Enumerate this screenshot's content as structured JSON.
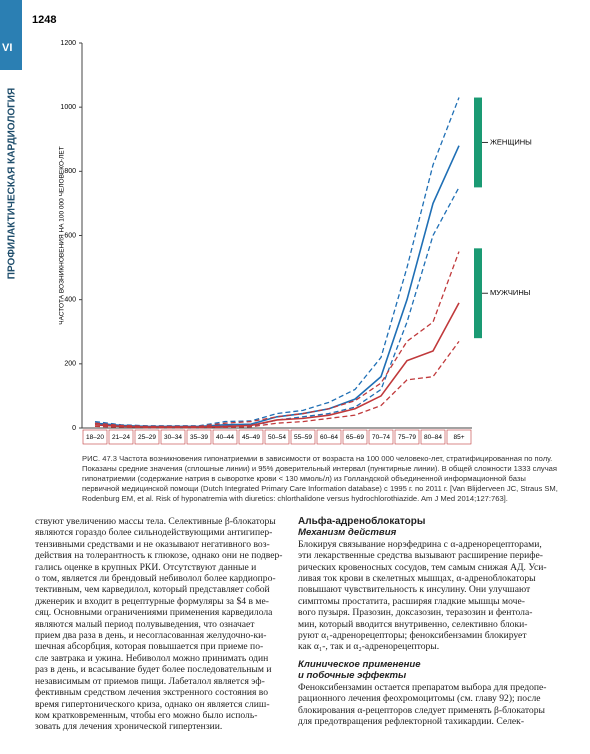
{
  "page": {
    "number": "1248",
    "section": "VI",
    "running_title": "ПРОФИЛАКТИЧЕСКАЯ КАРДИОЛОГИЯ",
    "caption": "РИС. 47.3 Частота возникновения гипонатриемии в зависимости от возраста на 100 000 человеко-лет, стратифицированная по полу. Показаны средние значения (сплошные линии) и 95% доверительный интервал (пунктирные линии). В общей сложности 1333 случая гипонатриемии (содержание натрия в сыворотке крови < 130 ммоль/л) из Голландской объединенной информационной базы первичной медицинской помощи (Dutch Integrated Primary Care Information database) с 1995 г. по 2011 г. [Van Blijderveen JC, Straus SM, Rodenburg EM, et al. Risk of hyponatremia with diuretics: chlorthalidone versus hydrochlorothiazide. Am J Med 2014;127:763].",
    "left_column": [
      "ствуют увеличению массы тела. Селективные β-блокаторы",
      "являются гораздо более сильнодействующими антигипер-",
      "тензивными средствами и не оказывают негативного воз-",
      "действия на толерантность к глюкозе, однако они не подвер-",
      "гались оценке в крупных РКИ. Отсутствуют данные и",
      "о том, является ли брендовый небиволол более кардиопро-",
      "тективным, чем карведилол, который представляет собой",
      "дженерик и входит в рецептурные формуляры за $4 в ме-",
      "сяц. Основными ограничениями применения карведилола",
      "являются малый период полувыведения, что означает",
      "прием два раза в день, и несогласованная желудочно-ки-",
      "шечная абсорбция, которая повышается при приеме по-",
      "сле завтрака и ужина. Небиволол можно принимать один",
      "раз в день, и всасывание будет более последовательным и",
      "независимым от приемов пищи. Лабеталол является эф-",
      "фективным средством лечения экстренного состояния во",
      "время гипертонического криза, однако он является слиш-",
      "ком кратковременным, чтобы его можно было исполь-",
      "зовать для лечения хронической гипертензии."
    ],
    "right_heading": "Альфа-адреноблокаторы",
    "right_subheading": "Механизм действия",
    "right_column": [
      "Блокируя связывание норэфедрина с α-адренорецепторами,",
      "эти лекарственные средства вызывают расширение перифе-",
      "рических кровеносных сосудов, тем самым снижая АД. Уси-",
      "ливая ток крови в скелетных мышцах, α-адреноблокаторы",
      "повышают чувствительность к инсулину. Они улучшают",
      "симптомы простатита, расширяя гладкие мышцы моче-",
      "вого пузыря. Празозин, доксазозин, теразозин и фентола-",
      "мин, который вводится внутривенно, селективно блоки-",
      "руют α₁-адренорецепторы; феноксибензамин блокирует",
      "как α₁-, так и α₂-адренорецепторы."
    ],
    "right_subheading_2": [
      "Клиническое применение",
      "и побочные эффекты"
    ],
    "right_column_2": [
      "Феноксибензамин остается препаратом выбора для предопе-",
      "рационного лечения феохромоцитомы (см. главу 92); после",
      "блокирования α-рецепторов следует применять β-блокаторы",
      "для предотвращения рефлекторной тахикардии. Селек-"
    ]
  },
  "chart_data": {
    "type": "line",
    "y_label": "ЧАСТОТА ВОЗНИКНОВЕНИЯ НА 100 000 ЧЕЛОВЕКО-ЛЕТ",
    "categories": [
      "18–20",
      "21–24",
      "25–29",
      "30–34",
      "35–39",
      "40–44",
      "45–49",
      "50–54",
      "55–59",
      "60–64",
      "65–69",
      "70–74",
      "75–79",
      "80–84",
      "85+"
    ],
    "ylim": [
      0,
      1200
    ],
    "yticks": [
      0,
      200,
      400,
      600,
      800,
      1000,
      1200
    ],
    "series": [
      {
        "color": "#1f6fb5",
        "dashed": false,
        "values": [
          15,
          8,
          5,
          5,
          5,
          10,
          12,
          35,
          45,
          60,
          90,
          160,
          400,
          700,
          880
        ]
      },
      {
        "color": "#1f6fb5",
        "dashed": true,
        "values": [
          20,
          10,
          7,
          7,
          7,
          20,
          22,
          45,
          55,
          80,
          120,
          220,
          500,
          820,
          1030
        ]
      },
      {
        "color": "#1f6fb5",
        "dashed": true,
        "values": [
          10,
          5,
          3,
          3,
          3,
          5,
          5,
          25,
          35,
          45,
          65,
          120,
          330,
          600,
          750
        ]
      },
      {
        "color": "#c0393b",
        "dashed": false,
        "values": [
          10,
          5,
          3,
          3,
          3,
          5,
          8,
          25,
          30,
          40,
          60,
          100,
          210,
          240,
          390
        ]
      },
      {
        "color": "#c0393b",
        "dashed": true,
        "values": [
          15,
          8,
          5,
          5,
          5,
          15,
          20,
          35,
          45,
          60,
          85,
          140,
          270,
          330,
          550
        ]
      },
      {
        "color": "#c0393b",
        "dashed": true,
        "values": [
          5,
          3,
          1,
          1,
          1,
          2,
          4,
          15,
          20,
          30,
          40,
          70,
          150,
          160,
          270
        ]
      }
    ],
    "annotations": [
      {
        "text": "ЖЕНЩИНЫ",
        "range": [
          750,
          1030
        ],
        "color": "#1a9a73"
      },
      {
        "text": "МУЖЧИНЫ",
        "range": [
          280,
          560
        ],
        "color": "#1a9a73"
      }
    ]
  }
}
